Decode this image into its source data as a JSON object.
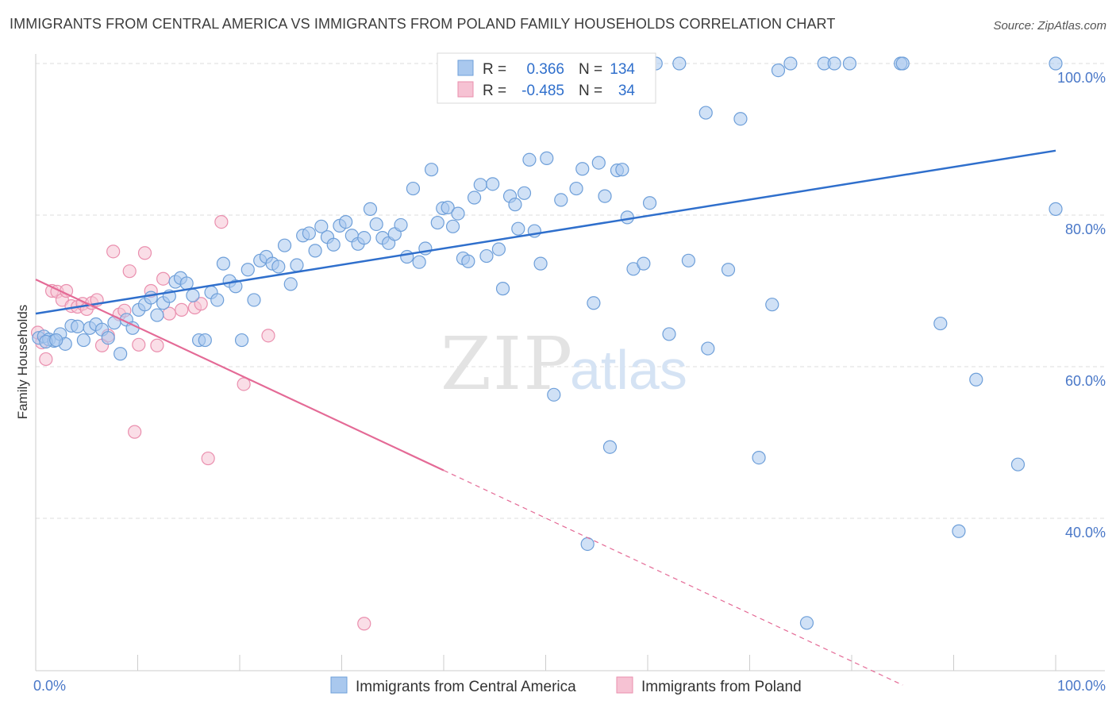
{
  "title": "IMMIGRANTS FROM CENTRAL AMERICA VS IMMIGRANTS FROM POLAND FAMILY HOUSEHOLDS CORRELATION CHART",
  "source": "Source: ZipAtlas.com",
  "watermark": {
    "zip": "ZIP",
    "atlas": "atlas"
  },
  "colors": {
    "blue_fill": "#a9c8ee",
    "blue_stroke": "#6e9fd9",
    "blue_line": "#2f6fcc",
    "pink_fill": "#f6c2d3",
    "pink_stroke": "#ea8fae",
    "pink_line": "#e46a96",
    "tick_label": "#4a78c8",
    "grid": "#dddddd"
  },
  "chart_data": {
    "type": "scatter",
    "title": "IMMIGRANTS FROM CENTRAL AMERICA VS IMMIGRANTS FROM POLAND FAMILY HOUSEHOLDS CORRELATION CHART",
    "xlabel": "",
    "ylabel": "Family Households",
    "xlim": [
      0,
      100
    ],
    "ylim": [
      18,
      101
    ],
    "x_tick_labels": [
      "0.0%",
      "100.0%"
    ],
    "y_ticks": [
      40,
      60,
      80,
      100
    ],
    "y_tick_labels": [
      "40.0%",
      "60.0%",
      "80.0%",
      "100.0%"
    ],
    "grid": true,
    "legend_position": "top-center",
    "stats": [
      {
        "r_label": "R =",
        "r_value": "0.366",
        "n_label": "N =",
        "n_value": "134"
      },
      {
        "r_label": "R =",
        "r_value": "-0.485",
        "n_label": "N =",
        "n_value": "34"
      }
    ],
    "series": [
      {
        "name": "Immigrants from Central America",
        "color": "#a9c8ee",
        "trend": {
          "x": [
            0,
            100
          ],
          "y": [
            67.0,
            88.5
          ],
          "solid_to": 100
        },
        "points": [
          [
            0.3,
            63.8
          ],
          [
            0.8,
            64.0
          ],
          [
            1.3,
            63.6
          ],
          [
            1.8,
            63.4
          ],
          [
            2.4,
            64.3
          ],
          [
            2.9,
            63.0
          ],
          [
            3.5,
            65.4
          ],
          [
            4.1,
            65.3
          ],
          [
            4.7,
            63.5
          ],
          [
            5.3,
            65.1
          ],
          [
            5.9,
            65.6
          ],
          [
            6.5,
            64.9
          ],
          [
            7.1,
            63.8
          ],
          [
            7.7,
            65.8
          ],
          [
            8.3,
            61.7
          ],
          [
            8.9,
            66.2
          ],
          [
            9.5,
            65.1
          ],
          [
            10.1,
            67.5
          ],
          [
            10.7,
            68.2
          ],
          [
            11.3,
            69.1
          ],
          [
            11.9,
            66.8
          ],
          [
            12.5,
            68.4
          ],
          [
            13.1,
            69.3
          ],
          [
            13.7,
            71.2
          ],
          [
            14.2,
            71.7
          ],
          [
            14.8,
            71.0
          ],
          [
            15.4,
            69.4
          ],
          [
            16.0,
            63.5
          ],
          [
            16.6,
            63.5
          ],
          [
            17.2,
            69.8
          ],
          [
            17.8,
            68.8
          ],
          [
            18.4,
            73.6
          ],
          [
            19.0,
            71.3
          ],
          [
            19.6,
            70.6
          ],
          [
            20.2,
            63.5
          ],
          [
            20.8,
            72.8
          ],
          [
            21.4,
            68.8
          ],
          [
            22.0,
            74.0
          ],
          [
            22.6,
            74.5
          ],
          [
            23.2,
            73.6
          ],
          [
            23.8,
            73.2
          ],
          [
            24.4,
            76.0
          ],
          [
            25.0,
            70.9
          ],
          [
            25.6,
            73.4
          ],
          [
            26.2,
            77.3
          ],
          [
            26.8,
            77.6
          ],
          [
            27.4,
            75.3
          ],
          [
            28.0,
            78.5
          ],
          [
            28.6,
            77.1
          ],
          [
            29.2,
            76.1
          ],
          [
            29.8,
            78.6
          ],
          [
            30.4,
            79.1
          ],
          [
            31.0,
            77.3
          ],
          [
            31.6,
            76.2
          ],
          [
            32.2,
            77.0
          ],
          [
            32.8,
            80.8
          ],
          [
            33.4,
            78.8
          ],
          [
            34.0,
            77.0
          ],
          [
            34.6,
            76.3
          ],
          [
            35.2,
            77.5
          ],
          [
            35.8,
            78.7
          ],
          [
            36.4,
            74.5
          ],
          [
            37.0,
            83.5
          ],
          [
            37.6,
            73.8
          ],
          [
            38.2,
            75.6
          ],
          [
            38.8,
            86.0
          ],
          [
            39.4,
            79.0
          ],
          [
            39.9,
            80.9
          ],
          [
            40.4,
            81.0
          ],
          [
            40.9,
            78.5
          ],
          [
            41.4,
            80.2
          ],
          [
            41.9,
            74.3
          ],
          [
            42.4,
            73.9
          ],
          [
            43.0,
            82.3
          ],
          [
            43.6,
            84.0
          ],
          [
            44.2,
            74.6
          ],
          [
            44.8,
            84.1
          ],
          [
            45.4,
            75.5
          ],
          [
            45.8,
            70.3
          ],
          [
            46.5,
            82.5
          ],
          [
            47.0,
            81.4
          ],
          [
            47.3,
            78.2
          ],
          [
            47.9,
            82.9
          ],
          [
            48.4,
            87.3
          ],
          [
            48.9,
            77.9
          ],
          [
            49.5,
            73.6
          ],
          [
            50.1,
            87.5
          ],
          [
            50.8,
            56.3
          ],
          [
            51.5,
            82.0
          ],
          [
            52.3,
            95.7
          ],
          [
            53.0,
            83.5
          ],
          [
            53.6,
            86.1
          ],
          [
            54.1,
            36.6
          ],
          [
            54.7,
            68.4
          ],
          [
            55.2,
            86.9
          ],
          [
            55.8,
            82.5
          ],
          [
            56.3,
            49.4
          ],
          [
            57.0,
            85.9
          ],
          [
            57.5,
            86.0
          ],
          [
            58.0,
            79.7
          ],
          [
            58.6,
            72.9
          ],
          [
            59.1,
            100.0
          ],
          [
            59.6,
            73.6
          ],
          [
            60.2,
            81.6
          ],
          [
            60.8,
            100.0
          ],
          [
            62.1,
            64.3
          ],
          [
            63.1,
            100.0
          ],
          [
            64.0,
            74.0
          ],
          [
            65.7,
            93.5
          ],
          [
            65.9,
            62.4
          ],
          [
            67.9,
            72.8
          ],
          [
            69.1,
            92.7
          ],
          [
            70.9,
            48.0
          ],
          [
            72.2,
            68.2
          ],
          [
            72.8,
            99.1
          ],
          [
            74.0,
            100.0
          ],
          [
            75.6,
            26.2
          ],
          [
            77.3,
            100.0
          ],
          [
            78.3,
            100.0
          ],
          [
            79.8,
            100.0
          ],
          [
            84.8,
            100.0
          ],
          [
            85.0,
            100.0
          ],
          [
            88.7,
            65.7
          ],
          [
            90.5,
            38.3
          ],
          [
            92.2,
            58.3
          ],
          [
            96.3,
            47.1
          ],
          [
            100.0,
            80.8
          ],
          [
            100.0,
            100.0
          ],
          [
            1.0,
            63.3
          ],
          [
            2.0,
            63.5
          ]
        ]
      },
      {
        "name": "Immigrants from Poland",
        "color": "#f6c2d3",
        "trend": {
          "x": [
            0,
            85
          ],
          "y": [
            71.5,
            18.0
          ],
          "solid_to": 40
        },
        "points": [
          [
            0.2,
            64.5
          ],
          [
            0.6,
            63.2
          ],
          [
            1.0,
            61.0
          ],
          [
            1.6,
            70.0
          ],
          [
            2.1,
            69.9
          ],
          [
            2.6,
            68.8
          ],
          [
            3.0,
            70.0
          ],
          [
            3.5,
            68.0
          ],
          [
            4.1,
            67.9
          ],
          [
            4.6,
            68.3
          ],
          [
            5.0,
            67.6
          ],
          [
            5.5,
            68.4
          ],
          [
            6.0,
            68.8
          ],
          [
            6.5,
            62.8
          ],
          [
            7.1,
            64.1
          ],
          [
            7.6,
            75.2
          ],
          [
            8.2,
            66.9
          ],
          [
            8.7,
            67.4
          ],
          [
            9.2,
            72.6
          ],
          [
            9.7,
            51.4
          ],
          [
            10.1,
            62.9
          ],
          [
            10.7,
            75.0
          ],
          [
            11.3,
            70.0
          ],
          [
            11.9,
            62.8
          ],
          [
            12.5,
            71.6
          ],
          [
            13.1,
            67.0
          ],
          [
            14.3,
            67.5
          ],
          [
            15.6,
            67.8
          ],
          [
            16.2,
            68.3
          ],
          [
            16.9,
            47.9
          ],
          [
            18.2,
            79.1
          ],
          [
            20.4,
            57.7
          ],
          [
            22.8,
            64.1
          ],
          [
            32.2,
            26.1
          ]
        ]
      }
    ]
  }
}
